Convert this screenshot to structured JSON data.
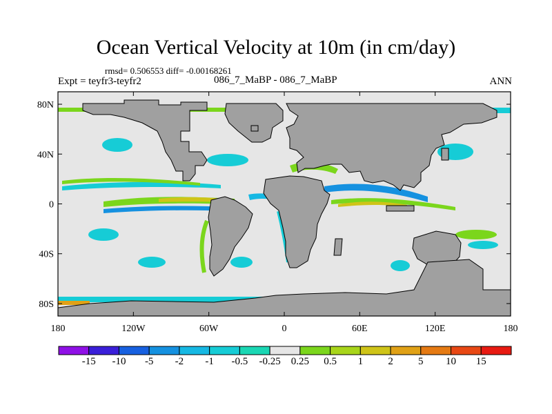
{
  "title": "Ocean Vertical Velocity at 10m (in cm/day)",
  "stats_line": "rmsd= 0.506553  diff= -0.00168261",
  "left_label": "Expt = teyfr3-teyfr2",
  "center_label": "086_7_MaBP - 086_7_MaBP",
  "right_label": "ANN",
  "axes": {
    "x_ticks": [
      "180",
      "120W",
      "60W",
      "0",
      "60E",
      "120E",
      "180"
    ],
    "y_ticks": [
      "80N",
      "40N",
      "0",
      "40S",
      "80S"
    ],
    "lon_range": [
      -180,
      180
    ],
    "lat_range": [
      -90,
      90
    ]
  },
  "colorbar": {
    "labels": [
      "-15",
      "-10",
      "-5",
      "-2",
      "-1",
      "-0.5",
      "-0.25",
      "0.25",
      "0.5",
      "1",
      "2",
      "5",
      "10",
      "15"
    ],
    "colors": [
      "#8f10e6",
      "#3a1fd9",
      "#1760e0",
      "#1591e0",
      "#16b8e3",
      "#16ccd6",
      "#1ad7b4",
      "#e6e6e6",
      "#7bd61c",
      "#a8d51a",
      "#cfc418",
      "#e0a116",
      "#e57a13",
      "#e84814",
      "#e81a12"
    ]
  },
  "colors": {
    "land": "#a0a0a0",
    "background_field": "#e6e6e6"
  }
}
